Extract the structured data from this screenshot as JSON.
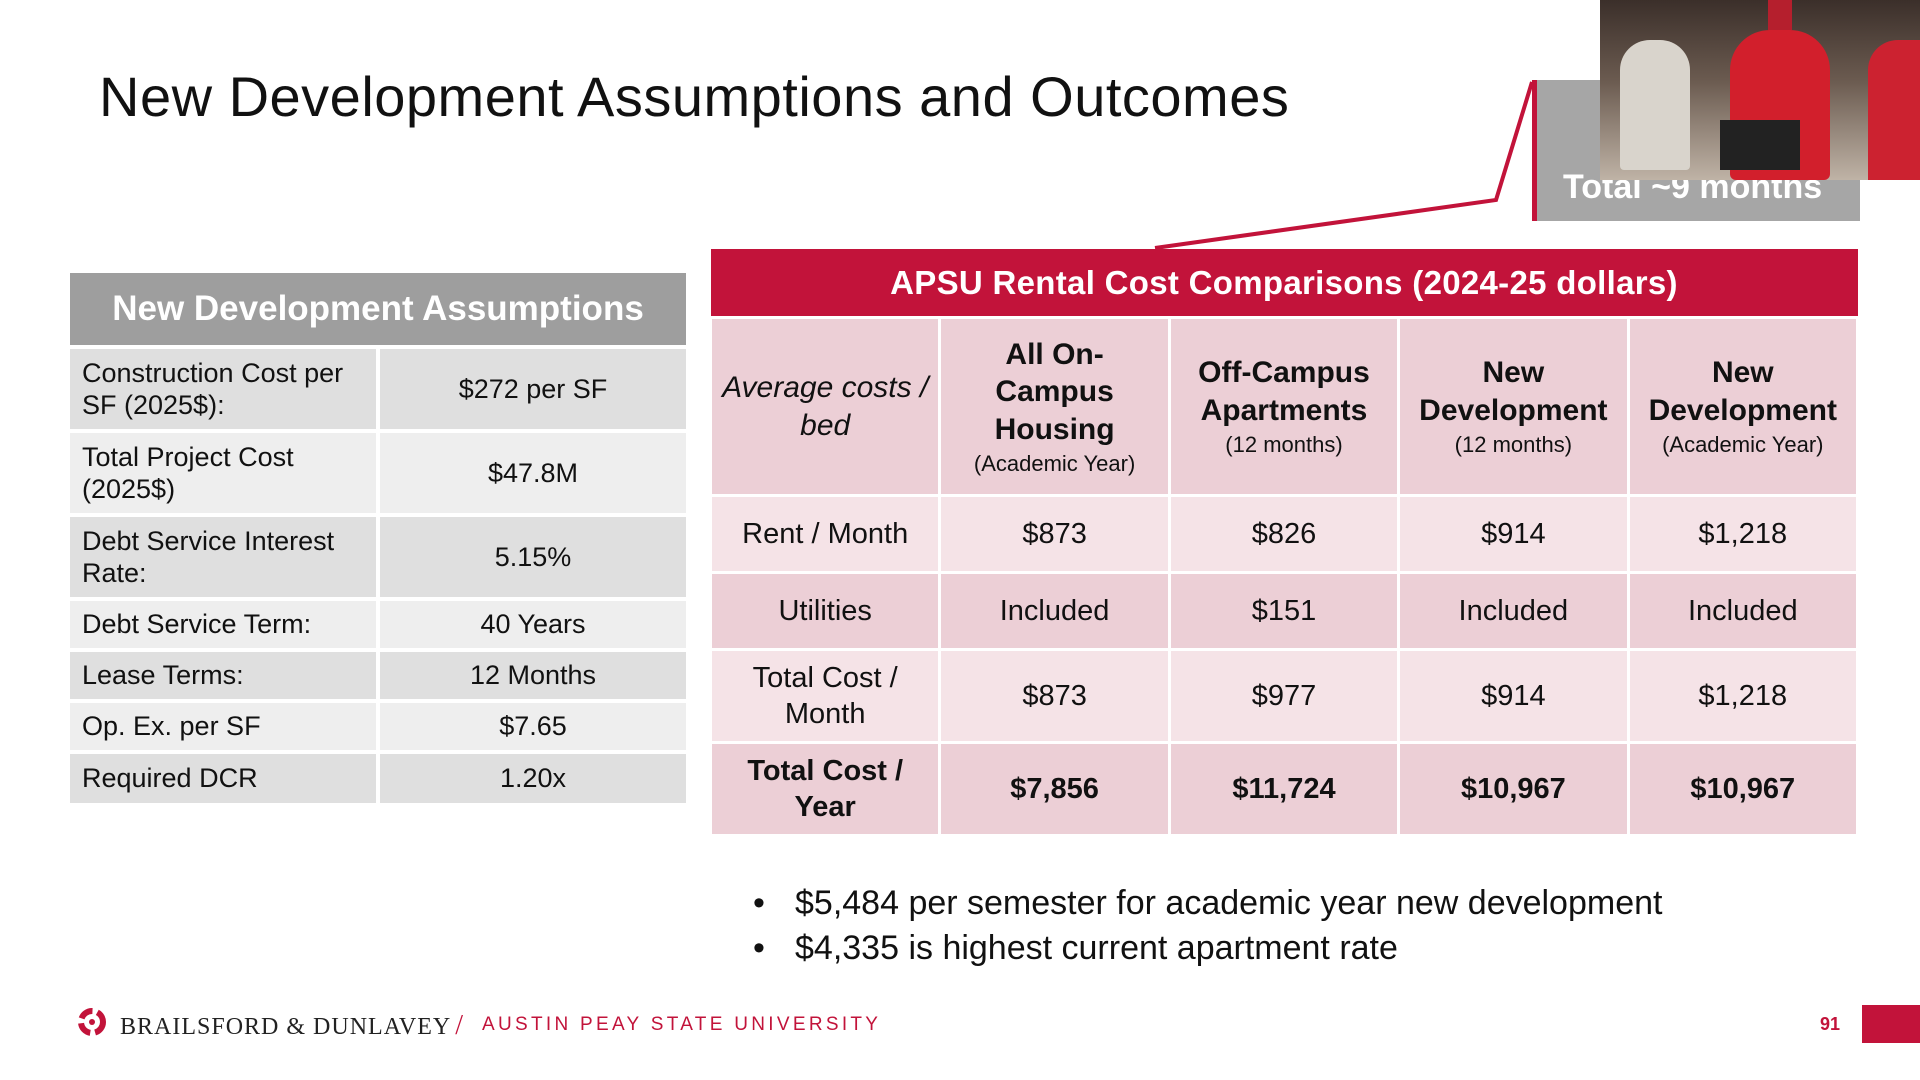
{
  "slide": {
    "title": "New Development Assumptions and Outcomes",
    "page_number": "91"
  },
  "assumptions": {
    "header": "New Development Assumptions",
    "rows": [
      {
        "label": "Construction Cost per SF (2025$):",
        "value": "$272 per SF"
      },
      {
        "label": "Total Project Cost (2025$)",
        "value": "$47.8M"
      },
      {
        "label": "Debt Service Interest Rate:",
        "value": "5.15%"
      },
      {
        "label": "Debt Service Term:",
        "value": "40 Years"
      },
      {
        "label": "Lease Terms:",
        "value": "12 Months"
      },
      {
        "label": "Op. Ex. per SF",
        "value": "$7.65"
      },
      {
        "label": "Required DCR",
        "value": "1.20x"
      }
    ]
  },
  "rental": {
    "header": "APSU Rental Cost Comparisons (2024-25 dollars)",
    "corner": "Average costs / bed",
    "columns": [
      {
        "main": "All On-Campus Housing",
        "sub": "(Academic Year)"
      },
      {
        "main": "Off-Campus Apartments",
        "sub": "(12 months)"
      },
      {
        "main": "New Development",
        "sub": "(12 months)"
      },
      {
        "main": "New Development",
        "sub": "(Academic Year)"
      }
    ],
    "rows": [
      {
        "label": "Rent / Month",
        "values": [
          "$873",
          "$826",
          "$914",
          "$1,218"
        ]
      },
      {
        "label": "Utilities",
        "values": [
          "Included",
          "$151",
          "Included",
          "Included"
        ]
      },
      {
        "label": "Total Cost / Month",
        "values": [
          "$873",
          "$977",
          "$914",
          "$1,218"
        ]
      },
      {
        "label": "Total Cost / Year",
        "values": [
          "$7,856",
          "$11,724",
          "$10,967",
          "$10,967"
        ]
      }
    ]
  },
  "bullets": [
    "$5,484 per semester for academic year new development",
    "$4,335 is highest current apartment rate"
  ],
  "callout": {
    "text": "Total ~9 months"
  },
  "footer": {
    "brand": "BRAILSFORD & DUNLAVEY",
    "slash": "/",
    "university": "AUSTIN PEAY STATE UNIVERSITY"
  },
  "colors": {
    "accent": "#c2133a",
    "header_gray": "#9e9e9e",
    "row_pink_dark": "#eccfd6",
    "row_pink_light": "#f5e3e7"
  }
}
